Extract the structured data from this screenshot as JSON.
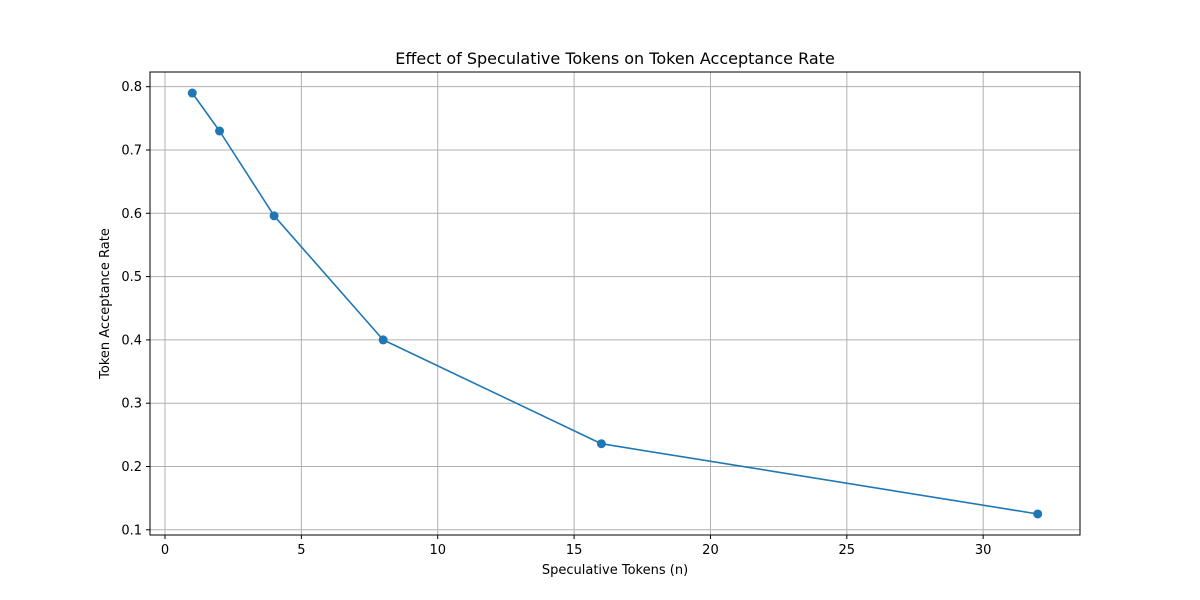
{
  "chart_data": {
    "type": "line",
    "title": "Effect of Speculative Tokens on Token Acceptance Rate",
    "xlabel": "Speculative Tokens (n)",
    "ylabel": "Token Acceptance Rate",
    "x": [
      1,
      2,
      4,
      8,
      16,
      32
    ],
    "series": [
      {
        "values": [
          0.79,
          0.73,
          0.596,
          0.4,
          0.236,
          0.125
        ],
        "color": "#1f77b4",
        "marker": "circle"
      }
    ],
    "xlim": [
      -0.55,
      33.55
    ],
    "ylim": [
      0.0918,
      0.8232
    ],
    "xticks": [
      0,
      5,
      10,
      15,
      20,
      25,
      30
    ],
    "yticks": [
      0.1,
      0.2,
      0.3,
      0.4,
      0.5,
      0.6,
      0.7,
      0.8
    ],
    "xtick_labels": [
      "0",
      "5",
      "10",
      "15",
      "20",
      "25",
      "30"
    ],
    "ytick_labels": [
      "0.1",
      "0.2",
      "0.3",
      "0.4",
      "0.5",
      "0.6",
      "0.7",
      "0.8"
    ],
    "grid": true,
    "grid_color": "#b0b0b0"
  }
}
